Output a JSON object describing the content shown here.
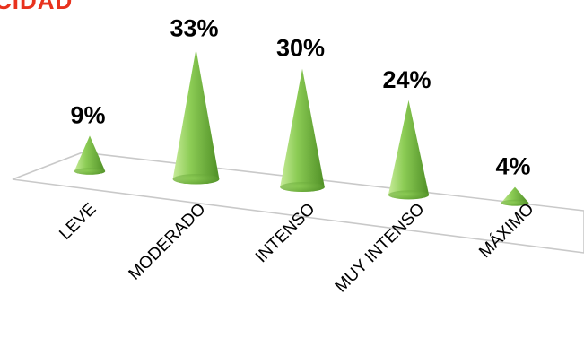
{
  "chart_data": {
    "type": "bar",
    "mark": "cone",
    "title_fragment": "CIDAD",
    "title_color": "#e8321e",
    "categories": [
      "LEVE",
      "MODERADO",
      "INTENSO",
      "MUY INTENSO",
      "MÁXIMO"
    ],
    "values": [
      9,
      33,
      30,
      24,
      4
    ],
    "value_labels": [
      "9%",
      "33%",
      "30%",
      "24%",
      "4%"
    ],
    "unit": "%",
    "ylim": [
      0,
      35
    ],
    "grid": false,
    "legend": "none",
    "colors": {
      "cone_light": "#c8ec9a",
      "cone_mid": "#8ccc55",
      "cone_dark": "#4f8f26",
      "floor_line": "#c9c9c9",
      "label_text": "#000000"
    }
  }
}
